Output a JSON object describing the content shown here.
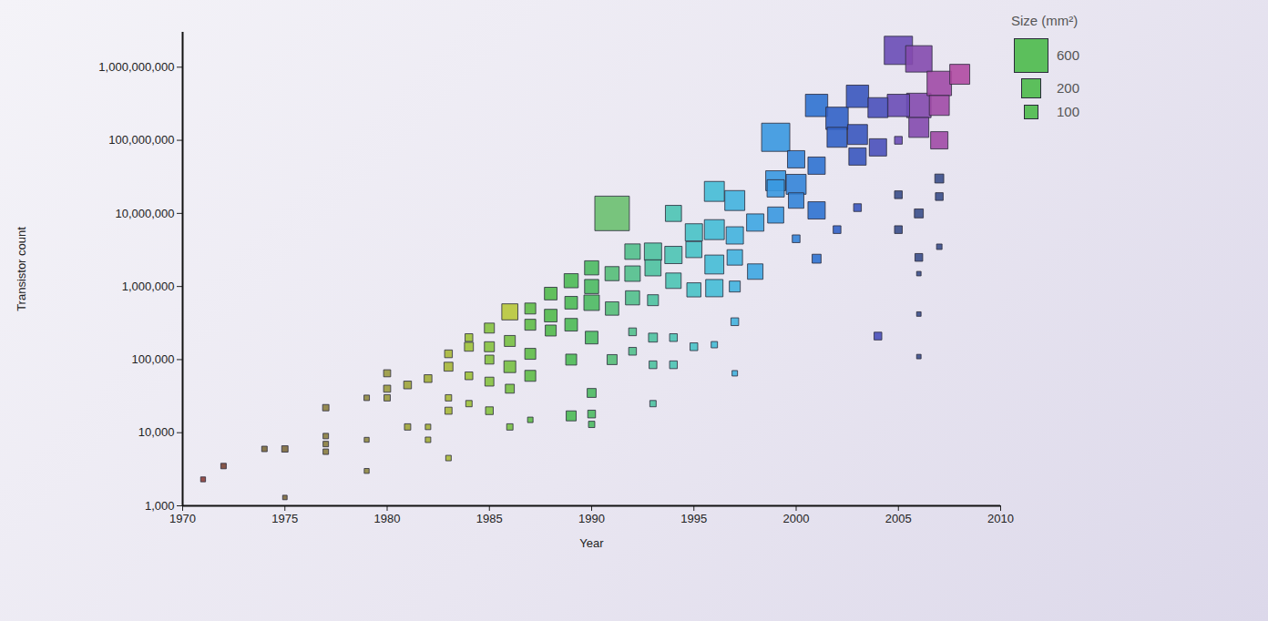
{
  "chart_data": {
    "type": "scatter",
    "marker": "square",
    "x_label": "Year",
    "y_label": "Transistor count",
    "log": "y",
    "grid": false,
    "legend": "top-right",
    "size_legend": {
      "title": "Size (mm²)",
      "values": [
        600,
        200,
        100
      ]
    },
    "xlim": [
      1970,
      2010
    ],
    "xticks": [
      1970,
      1975,
      1980,
      1985,
      1990,
      1995,
      2000,
      2005,
      2010
    ],
    "ylim": [
      1000,
      3000000000
    ],
    "yticks": [
      {
        "value": 1000,
        "label": "1,000"
      },
      {
        "value": 10000,
        "label": "10,000"
      },
      {
        "value": 100000,
        "label": "100,000"
      },
      {
        "value": 1000000,
        "label": "1,000,000"
      },
      {
        "value": 10000000,
        "label": "10,000,000"
      },
      {
        "value": 100000000,
        "label": "100,000,000"
      },
      {
        "value": 1000000000,
        "label": "1,000,000,000"
      }
    ],
    "x": [
      1971,
      1972,
      1974,
      1975,
      1975,
      1977,
      1977,
      1977,
      1977,
      1979,
      1979,
      1979,
      1980,
      1980,
      1980,
      1981,
      1981,
      1982,
      1982,
      1982,
      1983,
      1983,
      1983,
      1983,
      1983,
      1984,
      1984,
      1984,
      1984,
      1985,
      1985,
      1985,
      1985,
      1985,
      1986,
      1986,
      1986,
      1986,
      1986,
      1987,
      1987,
      1987,
      1987,
      1987,
      1988,
      1988,
      1988,
      1989,
      1989,
      1989,
      1989,
      1989,
      1990,
      1990,
      1990,
      1990,
      1990,
      1990,
      1990,
      1991,
      1991,
      1991,
      1991,
      1992,
      1992,
      1992,
      1992,
      1992,
      1993,
      1993,
      1993,
      1993,
      1993,
      1993,
      1994,
      1994,
      1994,
      1994,
      1994,
      1995,
      1995,
      1995,
      1995,
      1996,
      1996,
      1996,
      1996,
      1996,
      1997,
      1997,
      1997,
      1997,
      1997,
      1997,
      1998,
      1998,
      1999,
      1999,
      1999,
      1999,
      2000,
      2000,
      2000,
      2000,
      2001,
      2001,
      2001,
      2001,
      2002,
      2002,
      2002,
      2003,
      2003,
      2003,
      2003,
      2004,
      2004,
      2004,
      2005,
      2005,
      2005,
      2005,
      2005,
      2006,
      2006,
      2006,
      2006,
      2006,
      2006,
      2006,
      2006,
      2007,
      2007,
      2007,
      2007,
      2007,
      2007,
      2008
    ],
    "values": [
      2300,
      3500,
      6000,
      6000,
      1300,
      22000,
      9000,
      7000,
      5500,
      30000,
      8000,
      3000,
      65000,
      40000,
      30000,
      45000,
      12000,
      55000,
      12000,
      8000,
      80000,
      20000,
      4500,
      120000,
      30000,
      150000,
      60000,
      25000,
      200000,
      270000,
      150000,
      100000,
      50000,
      20000,
      450000,
      180000,
      80000,
      40000,
      12000,
      500000,
      300000,
      120000,
      60000,
      15000,
      400000,
      250000,
      800000,
      1200000,
      600000,
      300000,
      100000,
      17000,
      1800000,
      1000000,
      600000,
      200000,
      35000,
      18000,
      13000,
      10000000,
      1500000,
      500000,
      100000,
      3000000,
      1500000,
      700000,
      240000,
      130000,
      3000000,
      1800000,
      650000,
      200000,
      85000,
      25000,
      10000000,
      2700000,
      1200000,
      200000,
      85000,
      5500000,
      3200000,
      900000,
      150000,
      20000000,
      6000000,
      2000000,
      950000,
      160000,
      15000000,
      5000000,
      2500000,
      1000000,
      330000,
      65000,
      7500000,
      1600000,
      110000000,
      28000000,
      9500000,
      22000000,
      55000000,
      25000000,
      4500000,
      15000000,
      300000000,
      45000000,
      11000000,
      2400000,
      200000000,
      110000000,
      6000000,
      400000000,
      120000000,
      60000000,
      12000000,
      280000000,
      80000000,
      210000,
      1700000000,
      300000000,
      100000000,
      18000000,
      6000000,
      1300000000,
      300000000,
      150000000,
      10000000,
      2500000,
      1500000,
      420000,
      110000,
      600000000,
      300000000,
      100000000,
      30000000,
      17000000,
      3500000,
      800000000
    ],
    "sizes": [
      12,
      15,
      15,
      20,
      10,
      20,
      15,
      15,
      15,
      15,
      12,
      12,
      25,
      25,
      20,
      30,
      20,
      30,
      15,
      15,
      40,
      25,
      15,
      30,
      20,
      40,
      30,
      20,
      30,
      50,
      50,
      40,
      40,
      30,
      130,
      60,
      70,
      40,
      20,
      60,
      60,
      60,
      60,
      15,
      80,
      60,
      80,
      100,
      80,
      80,
      60,
      50,
      100,
      100,
      120,
      80,
      40,
      30,
      20,
      600,
      100,
      90,
      50,
      120,
      120,
      100,
      30,
      30,
      150,
      130,
      60,
      40,
      30,
      20,
      130,
      150,
      120,
      30,
      30,
      150,
      130,
      100,
      30,
      200,
      200,
      180,
      150,
      20,
      200,
      150,
      120,
      60,
      30,
      15,
      150,
      120,
      400,
      200,
      130,
      150,
      150,
      200,
      30,
      120,
      250,
      150,
      150,
      40,
      250,
      200,
      30,
      250,
      200,
      150,
      30,
      200,
      150,
      30,
      400,
      250,
      30,
      30,
      30,
      350,
      300,
      200,
      40,
      30,
      10,
      10,
      10,
      300,
      200,
      150,
      40,
      30,
      15,
      200
    ],
    "colors": [
      "#8c3f3a",
      "#7a4636",
      "#7c6a3c",
      "#7e6c3e",
      "#7e6c3e",
      "#8c8040",
      "#8c8040",
      "#8c8040",
      "#8c8040",
      "#908a42",
      "#908a42",
      "#908a42",
      "#9a9a3e",
      "#9a9a3e",
      "#9a9a3e",
      "#a0a53a",
      "#a0a53a",
      "#a3ae38",
      "#a3ae38",
      "#a3ae38",
      "#a8b838",
      "#a8b838",
      "#a8b838",
      "#a8b838",
      "#a8b838",
      "#9fc23a",
      "#9fc23a",
      "#9fc23a",
      "#9fc23a",
      "#86c240",
      "#86c240",
      "#86c240",
      "#86c240",
      "#86c240",
      "#b8c83a",
      "#78c044",
      "#78c044",
      "#78c044",
      "#78c044",
      "#5fbd48",
      "#5fbd48",
      "#5fbd48",
      "#5fbd48",
      "#5fbd48",
      "#52ba4c",
      "#52ba4c",
      "#52ba4c",
      "#4cba55",
      "#4cba55",
      "#4cba55",
      "#4cba55",
      "#4cba55",
      "#4cba62",
      "#4cba62",
      "#4cba62",
      "#4cba62",
      "#4cba62",
      "#4cba62",
      "#4cba62",
      "#6cc070",
      "#55be78",
      "#55be78",
      "#55be78",
      "#52c08c",
      "#52c08c",
      "#52c08c",
      "#52c08c",
      "#52c08c",
      "#4ec2a0",
      "#4ec2a0",
      "#4ec2a0",
      "#4ec2a0",
      "#4ec2a0",
      "#4ec2a0",
      "#4cc4b4",
      "#4cc4b4",
      "#4cc4b4",
      "#4cc4b4",
      "#4cc4b4",
      "#48c2c6",
      "#48c2c6",
      "#48c2c6",
      "#48c2c6",
      "#45bcd6",
      "#45bcd6",
      "#45bcd6",
      "#45bcd6",
      "#45bcd6",
      "#42b2de",
      "#42b2de",
      "#42b2de",
      "#42b2de",
      "#42b2de",
      "#42b2de",
      "#3ea6e2",
      "#3ea6e2",
      "#3a98e0",
      "#3a98e0",
      "#3a98e0",
      "#3a98e0",
      "#3484d8",
      "#3484d8",
      "#3484d8",
      "#3484d8",
      "#2f72d0",
      "#2f72d0",
      "#2f72d0",
      "#2f72d0",
      "#3262c6",
      "#3262c6",
      "#3262c6",
      "#3a56be",
      "#3a56be",
      "#3a56be",
      "#3a56be",
      "#4a50ba",
      "#4a50ba",
      "#4a50ba",
      "#6a4cb6",
      "#6a4cb6",
      "#6a4cb6",
      "#3a4e8a",
      "#3a4e8a",
      "#844aae",
      "#844aae",
      "#844aae",
      "#3a4e8a",
      "#3a4e8a",
      "#3a4e8a",
      "#3a4e8a",
      "#3a4e8a",
      "#a04aa6",
      "#a04aa6",
      "#a04aa6",
      "#3a4e8a",
      "#3a4e8a",
      "#3a4e8a",
      "#b04aa2"
    ]
  }
}
